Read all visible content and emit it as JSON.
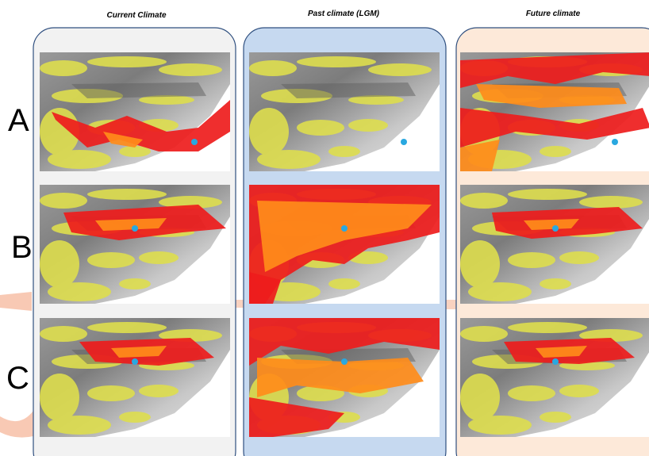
{
  "columns": [
    "Current Climate",
    "Past climate (LGM)",
    "Future climate"
  ],
  "rows": [
    "A",
    "B",
    "C"
  ]
}
